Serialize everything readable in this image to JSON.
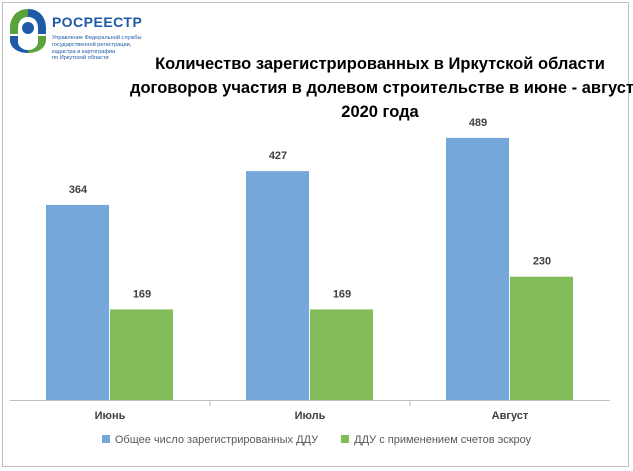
{
  "logo": {
    "brand": "РОСРЕЕСТР",
    "subtitle_lines": [
      "Управление Федеральной службы",
      "государственной регистрации,",
      "кадастра и картографии",
      "по Иркутской области"
    ]
  },
  "colors": {
    "series1": "#76a7da",
    "series2": "#83bd5a",
    "axis": "#bfbfbf",
    "label": "#404040",
    "brand": "#1e5aa8"
  },
  "chart_data": {
    "type": "bar",
    "title_lines": [
      "Количество зарегистрированных в Иркутской области",
      "договоров участия в долевом строительстве в июне - августе",
      "2020 года"
    ],
    "categories": [
      "Июнь",
      "Июль",
      "Август"
    ],
    "series": [
      {
        "name": "Общее число зарегистрированных ДДУ",
        "values": [
          364,
          427,
          489
        ]
      },
      {
        "name": "ДДУ с применением счетов эскроу",
        "values": [
          169,
          169,
          230
        ]
      }
    ],
    "ylim": [
      0,
      500
    ],
    "grid": false,
    "legend": "bottom"
  }
}
